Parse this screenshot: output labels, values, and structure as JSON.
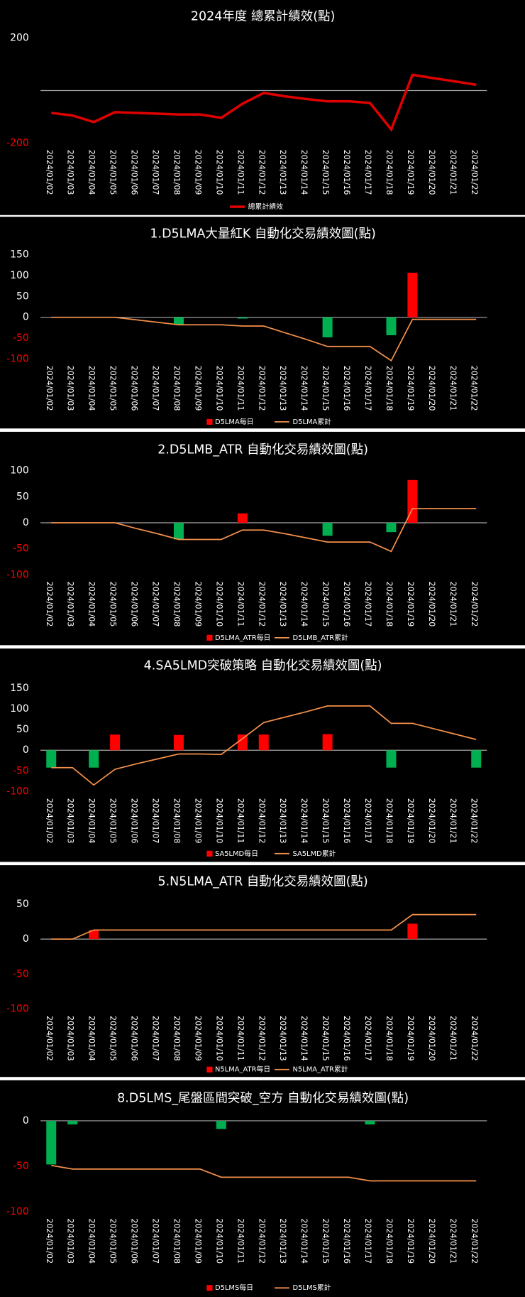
{
  "chart_data": [
    {
      "type": "line",
      "title": "2024年度 總累計績效(點)",
      "categories": [
        "2024/01/02",
        "2024/01/03",
        "2024/01/04",
        "2024/01/05",
        "2024/01/06",
        "2024/01/07",
        "2024/01/08",
        "2024/01/09",
        "2024/01/10",
        "2024/01/11",
        "2024/01/12",
        "2024/01/13",
        "2024/01/14",
        "2024/01/15",
        "2024/01/16",
        "2024/01/17",
        "2024/01/18",
        "2024/01/19",
        "2024/01/20",
        "2024/01/21",
        "2024/01/22"
      ],
      "series": [
        {
          "name": "總累計績效",
          "type": "line",
          "color": "#e00000",
          "values": [
            -85,
            -95,
            -120,
            -82,
            -85,
            -88,
            -91,
            -91,
            -104,
            -50,
            -9,
            -22,
            -32,
            -41,
            -41,
            -47,
            -148,
            60,
            47,
            35,
            22
          ]
        }
      ],
      "ylim": [
        -200,
        200
      ],
      "yticks": [
        -200,
        200
      ],
      "negative_tick_color": "#ff0000"
    },
    {
      "type": "combo",
      "title": "1.D5LMA大量紅K 自動化交易績效圖(點)",
      "categories": [
        "2024/01/02",
        "2024/01/03",
        "2024/01/04",
        "2024/01/05",
        "2024/01/06",
        "2024/01/07",
        "2024/01/08",
        "2024/01/09",
        "2024/01/10",
        "2024/01/11",
        "2024/01/12",
        "2024/01/13",
        "2024/01/14",
        "2024/01/15",
        "2024/01/16",
        "2024/01/17",
        "2024/01/18",
        "2024/01/19",
        "2024/01/20",
        "2024/01/21",
        "2024/01/22"
      ],
      "series": [
        {
          "name": "D5LMA每日",
          "type": "bar",
          "color": "#ff0000",
          "negative_color": "#00b050",
          "values": [
            null,
            null,
            null,
            null,
            null,
            null,
            -18,
            null,
            null,
            -3,
            null,
            null,
            null,
            -48,
            null,
            null,
            -43,
            107,
            null,
            null,
            null
          ]
        },
        {
          "name": "D5LMA累計",
          "type": "line",
          "color": "#f4904a",
          "values": [
            0,
            0,
            0,
            0,
            -6,
            -12,
            -18,
            -18,
            -18,
            -21,
            -21,
            -37,
            -53,
            -70,
            -70,
            -70,
            -104,
            -5,
            -5,
            -5,
            -5
          ]
        }
      ],
      "ylim": [
        -100,
        150
      ],
      "yticks": [
        -100,
        -50,
        0,
        50,
        100,
        150
      ],
      "negative_tick_color": "#ff0000"
    },
    {
      "type": "combo",
      "title": "2.D5LMB_ATR  自動化交易績效圖(點)",
      "categories": [
        "2024/01/02",
        "2024/01/03",
        "2024/01/04",
        "2024/01/05",
        "2024/01/06",
        "2024/01/07",
        "2024/01/08",
        "2024/01/09",
        "2024/01/10",
        "2024/01/11",
        "2024/01/12",
        "2024/01/13",
        "2024/01/14",
        "2024/01/15",
        "2024/01/16",
        "2024/01/17",
        "2024/01/18",
        "2024/01/19",
        "2024/01/20",
        "2024/01/21",
        "2024/01/22"
      ],
      "series": [
        {
          "name": "D5LMA_ATR每日",
          "type": "bar",
          "color": "#ff0000",
          "negative_color": "#00b050",
          "values": [
            null,
            null,
            null,
            null,
            null,
            null,
            -32,
            null,
            null,
            18,
            null,
            null,
            null,
            -25,
            null,
            null,
            -18,
            82,
            null,
            null,
            null
          ]
        },
        {
          "name": "D5LMB_ATR累計",
          "type": "line",
          "color": "#f4904a",
          "values": [
            0,
            0,
            0,
            0,
            -11,
            -21,
            -32,
            -32,
            -32,
            -14,
            -14,
            -21,
            -29,
            -37,
            -37,
            -37,
            -55,
            27,
            27,
            27,
            27
          ]
        }
      ],
      "ylim": [
        -100,
        100
      ],
      "yticks": [
        -100,
        -50,
        0,
        50,
        100
      ],
      "negative_tick_color": "#ff0000"
    },
    {
      "type": "combo",
      "title": "4.SA5LMD突破策略  自動化交易績效圖(點)",
      "categories": [
        "2024/01/02",
        "2024/01/03",
        "2024/01/04",
        "2024/01/05",
        "2024/01/06",
        "2024/01/07",
        "2024/01/08",
        "2024/01/09",
        "2024/01/10",
        "2024/01/11",
        "2024/01/12",
        "2024/01/13",
        "2024/01/14",
        "2024/01/15",
        "2024/01/16",
        "2024/01/17",
        "2024/01/18",
        "2024/01/19",
        "2024/01/20",
        "2024/01/21",
        "2024/01/22"
      ],
      "series": [
        {
          "name": "SA5LMD每日",
          "type": "bar",
          "color": "#ff0000",
          "negative_color": "#00b050",
          "values": [
            -42,
            null,
            -42,
            38,
            null,
            null,
            37,
            null,
            null,
            38,
            38,
            null,
            null,
            39,
            null,
            null,
            -42,
            null,
            null,
            null,
            -42
          ]
        },
        {
          "name": "SA5LMD累計",
          "type": "line",
          "color": "#f4904a",
          "values": [
            -42,
            -42,
            -84,
            -46,
            -33,
            -21,
            -9,
            -9,
            -10,
            28,
            67,
            80,
            93,
            107,
            107,
            107,
            65,
            65,
            52,
            39,
            26
          ]
        }
      ],
      "ylim": [
        -100,
        150
      ],
      "yticks": [
        -100,
        -50,
        0,
        50,
        100,
        150
      ],
      "negative_tick_color": "#ff0000"
    },
    {
      "type": "combo",
      "title": "5.N5LMA_ATR  自動化交易績效圖(點)",
      "categories": [
        "2024/01/02",
        "2024/01/03",
        "2024/01/04",
        "2024/01/05",
        "2024/01/06",
        "2024/01/07",
        "2024/01/08",
        "2024/01/09",
        "2024/01/10",
        "2024/01/11",
        "2024/01/12",
        "2024/01/13",
        "2024/01/14",
        "2024/01/15",
        "2024/01/16",
        "2024/01/17",
        "2024/01/18",
        "2024/01/19",
        "2024/01/20",
        "2024/01/21",
        "2024/01/22"
      ],
      "series": [
        {
          "name": "N5LMA_ATR每日",
          "type": "bar",
          "color": "#ff0000",
          "negative_color": "#00b050",
          "values": [
            null,
            null,
            13,
            null,
            null,
            null,
            null,
            null,
            null,
            null,
            null,
            null,
            null,
            null,
            null,
            null,
            null,
            22,
            null,
            null,
            null
          ]
        },
        {
          "name": "N5LMA_ATR累計",
          "type": "line",
          "color": "#f4904a",
          "values": [
            0,
            0,
            13,
            13,
            13,
            13,
            13,
            13,
            13,
            13,
            13,
            13,
            13,
            13,
            13,
            13,
            13,
            35,
            35,
            35,
            35
          ]
        }
      ],
      "ylim": [
        -100,
        50
      ],
      "yticks": [
        -100,
        -50,
        0,
        50
      ],
      "negative_tick_color": "#ff0000"
    },
    {
      "type": "combo",
      "title": "8.D5LMS_尾盤區間突破_空方  自動化交易績效圖(點)",
      "categories": [
        "2024/01/02",
        "2024/01/03",
        "2024/01/04",
        "2024/01/05",
        "2024/01/06",
        "2024/01/07",
        "2024/01/08",
        "2024/01/09",
        "2024/01/10",
        "2024/01/11",
        "2024/01/12",
        "2024/01/13",
        "2024/01/14",
        "2024/01/15",
        "2024/01/16",
        "2024/01/17",
        "2024/01/18",
        "2024/01/19",
        "2024/01/20",
        "2024/01/21",
        "2024/01/22"
      ],
      "series": [
        {
          "name": "D5LMS每日",
          "type": "bar",
          "color": "#ff0000",
          "negative_color": "#00b050",
          "values": [
            -48,
            -4,
            null,
            null,
            null,
            null,
            null,
            null,
            -9,
            null,
            null,
            null,
            null,
            null,
            null,
            -4,
            null,
            null,
            null,
            null,
            null
          ]
        },
        {
          "name": "D5LMS累計",
          "type": "line",
          "color": "#f4904a",
          "values": [
            -49,
            -53,
            -53,
            -53,
            -53,
            -53,
            -53,
            -53,
            -62,
            -62,
            -62,
            -62,
            -62,
            -62,
            -62,
            -66,
            -66,
            -66,
            -66,
            -66,
            -66
          ]
        }
      ],
      "ylim": [
        -100,
        0
      ],
      "yticks": [
        -100,
        -50,
        0
      ],
      "negative_tick_color": "#ff0000"
    }
  ]
}
